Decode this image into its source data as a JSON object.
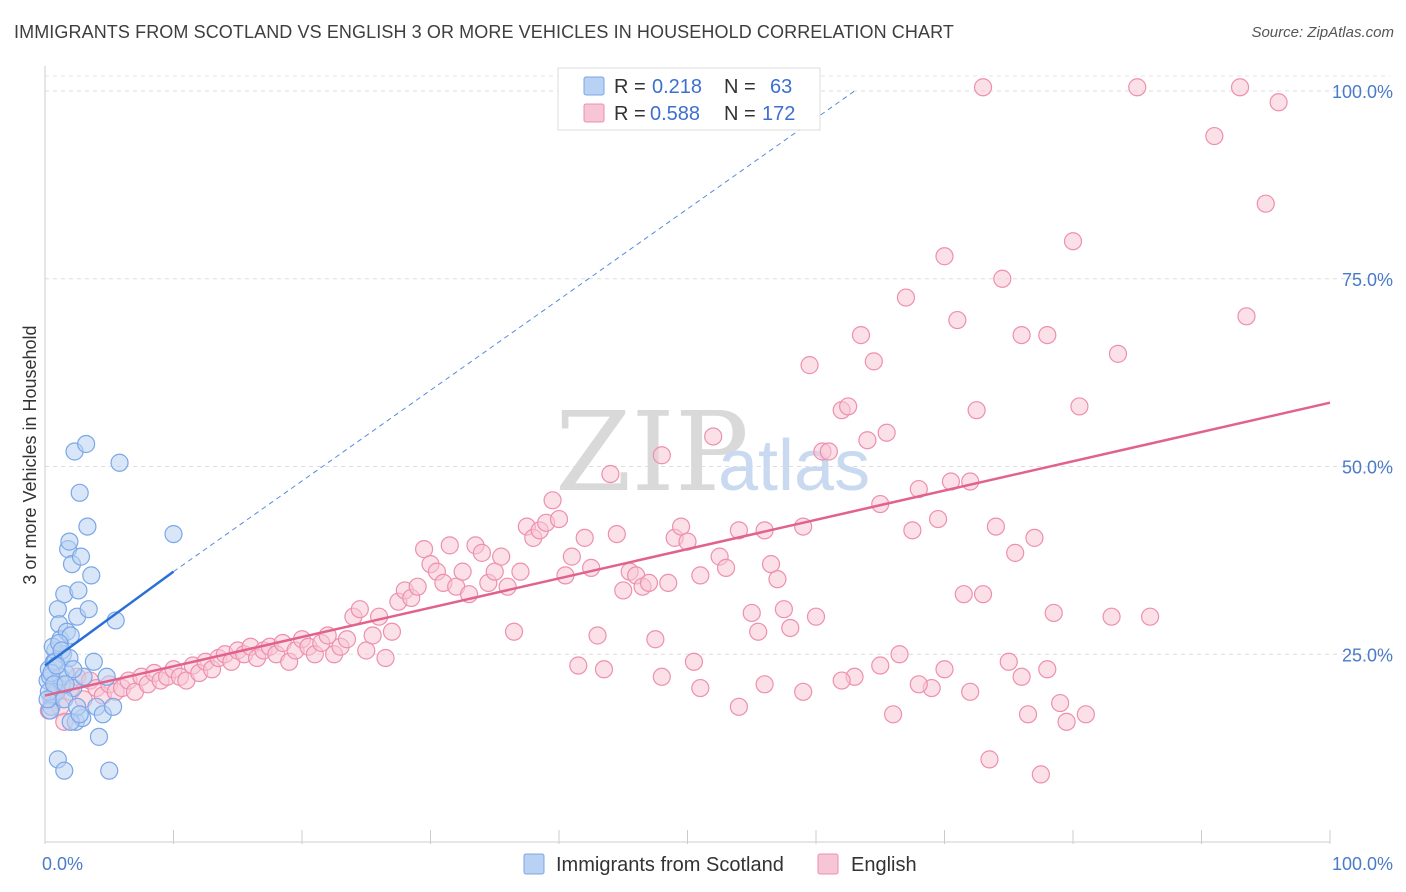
{
  "title": "IMMIGRANTS FROM SCOTLAND VS ENGLISH 3 OR MORE VEHICLES IN HOUSEHOLD CORRELATION CHART",
  "source": "Source: ZipAtlas.com",
  "watermark": {
    "zip": "ZIP",
    "atlas": "atlas"
  },
  "colors": {
    "blue": "#7aa7e8",
    "blue_fill": "#b9d1f2",
    "blue_line": "#2a6fd6",
    "pink": "#ee8fb0",
    "pink_fill": "#f7c6d6",
    "pink_line": "#e0628d",
    "axis_text": "#4a7bc8",
    "grid": "#dddddd"
  },
  "legend": {
    "rows": [
      {
        "r_label": "R =",
        "r_value": "0.218",
        "n_label": "N =",
        "n_value": "63",
        "color": "blue"
      },
      {
        "r_label": "R =",
        "r_value": "0.588",
        "n_label": "N =",
        "n_value": "172",
        "color": "pink"
      }
    ]
  },
  "bottom_legend": [
    {
      "label": "Immigrants from Scotland",
      "color": "blue"
    },
    {
      "label": "English",
      "color": "pink"
    }
  ],
  "chart_data": {
    "type": "scatter",
    "title": "IMMIGRANTS FROM SCOTLAND VS ENGLISH 3 OR MORE VEHICLES IN HOUSEHOLD CORRELATION CHART",
    "xlabel": "",
    "ylabel": "3 or more Vehicles in Household",
    "xlim": [
      0,
      100
    ],
    "ylim": [
      0,
      102
    ],
    "x_tick_labels": [
      {
        "value": 0,
        "label": "0.0%"
      },
      {
        "value": 100,
        "label": "100.0%"
      }
    ],
    "y_tick_labels": [
      {
        "value": 25,
        "label": "25.0%"
      },
      {
        "value": 50,
        "label": "50.0%"
      },
      {
        "value": 75,
        "label": "75.0%"
      },
      {
        "value": 100,
        "label": "100.0%"
      }
    ],
    "grid": true,
    "series": [
      {
        "name": "Immigrants from Scotland",
        "color": "blue",
        "trend": {
          "x0": 0,
          "y0": 23.5,
          "x1": 10,
          "y1": 36,
          "dashed_to": [
            63,
            100
          ]
        },
        "points": [
          [
            0.2,
            21.5
          ],
          [
            0.3,
            23
          ],
          [
            0.4,
            22
          ],
          [
            0.5,
            18
          ],
          [
            0.6,
            19.5
          ],
          [
            0.7,
            24
          ],
          [
            0.8,
            25.5
          ],
          [
            0.9,
            20
          ],
          [
            1.0,
            31
          ],
          [
            1.1,
            29
          ],
          [
            1.2,
            27
          ],
          [
            1.3,
            21
          ],
          [
            1.4,
            25
          ],
          [
            1.5,
            33
          ],
          [
            1.6,
            22.5
          ],
          [
            1.7,
            28
          ],
          [
            1.8,
            39
          ],
          [
            1.9,
            40
          ],
          [
            2.0,
            27.5
          ],
          [
            2.1,
            37
          ],
          [
            2.2,
            20.5
          ],
          [
            2.3,
            52
          ],
          [
            2.4,
            16
          ],
          [
            2.5,
            30
          ],
          [
            2.6,
            33.5
          ],
          [
            2.7,
            46.5
          ],
          [
            2.8,
            38
          ],
          [
            2.9,
            16.5
          ],
          [
            3.0,
            22
          ],
          [
            3.2,
            53
          ],
          [
            3.3,
            42
          ],
          [
            3.4,
            31
          ],
          [
            3.6,
            35.5
          ],
          [
            3.8,
            24
          ],
          [
            4.0,
            18
          ],
          [
            4.2,
            14
          ],
          [
            4.5,
            17
          ],
          [
            4.8,
            22
          ],
          [
            5.0,
            9.5
          ],
          [
            5.3,
            18
          ],
          [
            5.5,
            29.5
          ],
          [
            5.8,
            50.5
          ],
          [
            1.0,
            11
          ],
          [
            1.5,
            9.5
          ],
          [
            0.4,
            17.5
          ],
          [
            0.6,
            26
          ],
          [
            0.8,
            24
          ],
          [
            1.2,
            22
          ],
          [
            1.5,
            19
          ],
          [
            2.0,
            16
          ],
          [
            2.5,
            18
          ],
          [
            0.3,
            20
          ],
          [
            0.5,
            22.5
          ],
          [
            0.7,
            21
          ],
          [
            1.1,
            26.5
          ],
          [
            1.3,
            25.5
          ],
          [
            1.6,
            21
          ],
          [
            1.9,
            24.5
          ],
          [
            2.2,
            23
          ],
          [
            2.7,
            17
          ],
          [
            10,
            41
          ],
          [
            0.2,
            19
          ],
          [
            0.9,
            23.5
          ]
        ]
      },
      {
        "name": "English",
        "color": "pink",
        "trend": {
          "x0": 0,
          "y0": 19.5,
          "x1": 100,
          "y1": 58.5
        },
        "points": [
          [
            0.3,
            17.5
          ],
          [
            0.5,
            19
          ],
          [
            0.8,
            21
          ],
          [
            1.2,
            18
          ],
          [
            1.5,
            16
          ],
          [
            2,
            20
          ],
          [
            2.5,
            22
          ],
          [
            3,
            19
          ],
          [
            3.5,
            21.5
          ],
          [
            4,
            20.5
          ],
          [
            4.5,
            19.5
          ],
          [
            5,
            21
          ],
          [
            5.5,
            20
          ],
          [
            6,
            20.5
          ],
          [
            6.5,
            21.5
          ],
          [
            7,
            20
          ],
          [
            7.5,
            22
          ],
          [
            8,
            21
          ],
          [
            8.5,
            22.5
          ],
          [
            9,
            21.5
          ],
          [
            9.5,
            22
          ],
          [
            10,
            23
          ],
          [
            10.5,
            22
          ],
          [
            11,
            21.5
          ],
          [
            11.5,
            23.5
          ],
          [
            12,
            22.5
          ],
          [
            12.5,
            24
          ],
          [
            13,
            23
          ],
          [
            13.5,
            24.5
          ],
          [
            14,
            25
          ],
          [
            14.5,
            24
          ],
          [
            15,
            25.5
          ],
          [
            15.5,
            25
          ],
          [
            16,
            26
          ],
          [
            16.5,
            24.5
          ],
          [
            17,
            25.5
          ],
          [
            17.5,
            26
          ],
          [
            18,
            25
          ],
          [
            18.5,
            26.5
          ],
          [
            19,
            24
          ],
          [
            19.5,
            25.5
          ],
          [
            20,
            27
          ],
          [
            20.5,
            26
          ],
          [
            21,
            25
          ],
          [
            21.5,
            26.5
          ],
          [
            22,
            27.5
          ],
          [
            22.5,
            25
          ],
          [
            23,
            26
          ],
          [
            23.5,
            27
          ],
          [
            24,
            30
          ],
          [
            24.5,
            31
          ],
          [
            25,
            25.5
          ],
          [
            25.5,
            27.5
          ],
          [
            26,
            30
          ],
          [
            26.5,
            24.5
          ],
          [
            27,
            28
          ],
          [
            27.5,
            32
          ],
          [
            28,
            33.5
          ],
          [
            28.5,
            32.5
          ],
          [
            29,
            34
          ],
          [
            29.5,
            39
          ],
          [
            30,
            37
          ],
          [
            30.5,
            36
          ],
          [
            31,
            34.5
          ],
          [
            31.5,
            39.5
          ],
          [
            32,
            34
          ],
          [
            32.5,
            36
          ],
          [
            33,
            33
          ],
          [
            33.5,
            39.5
          ],
          [
            34,
            38.5
          ],
          [
            34.5,
            34.5
          ],
          [
            35,
            36
          ],
          [
            35.5,
            38
          ],
          [
            36,
            34
          ],
          [
            36.5,
            28
          ],
          [
            37,
            36
          ],
          [
            37.5,
            42
          ],
          [
            38,
            40.5
          ],
          [
            38.5,
            41.5
          ],
          [
            39,
            42.5
          ],
          [
            39.5,
            45.5
          ],
          [
            40,
            43
          ],
          [
            40.5,
            35.5
          ],
          [
            41,
            38
          ],
          [
            41.5,
            23.5
          ],
          [
            42,
            40.5
          ],
          [
            42.5,
            36.5
          ],
          [
            43,
            27.5
          ],
          [
            43.5,
            23
          ],
          [
            44,
            49
          ],
          [
            44.5,
            41
          ],
          [
            45,
            33.5
          ],
          [
            45.5,
            36
          ],
          [
            46,
            35.5
          ],
          [
            46.5,
            34
          ],
          [
            47,
            34.5
          ],
          [
            47.5,
            27
          ],
          [
            48,
            51.5
          ],
          [
            48.5,
            34.5
          ],
          [
            49,
            40.5
          ],
          [
            49.5,
            42
          ],
          [
            50,
            40
          ],
          [
            50.5,
            24
          ],
          [
            51,
            35.5
          ],
          [
            52,
            54
          ],
          [
            52.5,
            38
          ],
          [
            53,
            36.5
          ],
          [
            54,
            41.5
          ],
          [
            55,
            30.5
          ],
          [
            55.5,
            28
          ],
          [
            56,
            41.5
          ],
          [
            56.5,
            37
          ],
          [
            57,
            35
          ],
          [
            57.5,
            31
          ],
          [
            58,
            28.5
          ],
          [
            59,
            42
          ],
          [
            59.5,
            63.5
          ],
          [
            60,
            30
          ],
          [
            60.5,
            52
          ],
          [
            61,
            52
          ],
          [
            62,
            57.5
          ],
          [
            62.5,
            58
          ],
          [
            63,
            22
          ],
          [
            63.5,
            67.5
          ],
          [
            64,
            53.5
          ],
          [
            64.5,
            64
          ],
          [
            65,
            45
          ],
          [
            65.5,
            54.5
          ],
          [
            66,
            17
          ],
          [
            66.5,
            25
          ],
          [
            67,
            72.5
          ],
          [
            67.5,
            41.5
          ],
          [
            68,
            47
          ],
          [
            69,
            20.5
          ],
          [
            69.5,
            43
          ],
          [
            70,
            78
          ],
          [
            70.5,
            48
          ],
          [
            71,
            69.5
          ],
          [
            71.5,
            33
          ],
          [
            72,
            48
          ],
          [
            72.5,
            57.5
          ],
          [
            73,
            33
          ],
          [
            73.5,
            11
          ],
          [
            74,
            42
          ],
          [
            74.5,
            75
          ],
          [
            75,
            24
          ],
          [
            75.5,
            38.5
          ],
          [
            76,
            67.5
          ],
          [
            76.5,
            17
          ],
          [
            77,
            40.5
          ],
          [
            77.5,
            9
          ],
          [
            78,
            67.5
          ],
          [
            78.5,
            30.5
          ],
          [
            79,
            18.5
          ],
          [
            79.5,
            16
          ],
          [
            80,
            80
          ],
          [
            80.5,
            58
          ],
          [
            81,
            17
          ],
          [
            83,
            30
          ],
          [
            83.5,
            65
          ],
          [
            86,
            30
          ],
          [
            91,
            94
          ],
          [
            93,
            100.5
          ],
          [
            93.5,
            70
          ],
          [
            95,
            85
          ],
          [
            96,
            98.5
          ],
          [
            73,
            100.5
          ],
          [
            85,
            100.5
          ],
          [
            78,
            23
          ],
          [
            70,
            23
          ],
          [
            65,
            23.5
          ],
          [
            56,
            21
          ],
          [
            54,
            18
          ],
          [
            72,
            20
          ],
          [
            76,
            22
          ],
          [
            68,
            21
          ],
          [
            62,
            21.5
          ],
          [
            59,
            20
          ],
          [
            51,
            20.5
          ],
          [
            48,
            22
          ]
        ]
      }
    ]
  },
  "axes": {
    "ylabel": "3 or more Vehicles in Household"
  }
}
